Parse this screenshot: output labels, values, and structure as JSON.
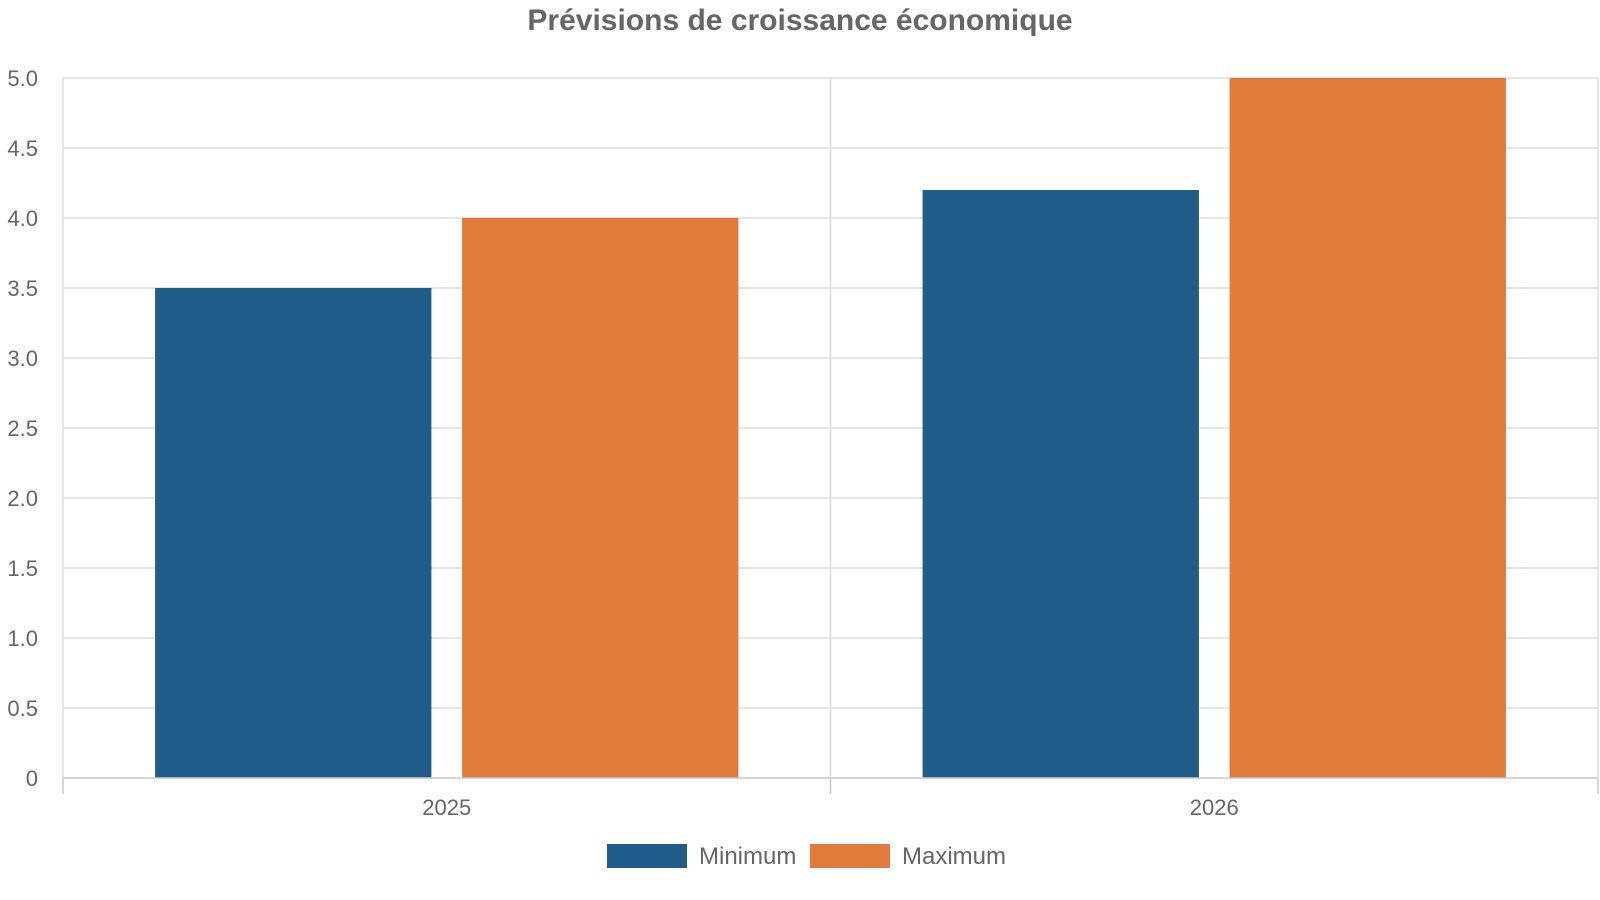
{
  "chart_data": {
    "type": "bar",
    "title": "Prévisions de croissance économique",
    "xlabel": "",
    "ylabel": "",
    "categories": [
      "2025",
      "2026"
    ],
    "series": [
      {
        "name": "Minimum",
        "values": [
          3.5,
          4.2
        ],
        "color": "#1f5c87"
      },
      {
        "name": "Maximum",
        "values": [
          4.0,
          5.0
        ],
        "color": "#e07b3b"
      }
    ],
    "ylim": [
      0,
      5
    ],
    "yticks": [
      "0",
      "0.5",
      "1.0",
      "1.5",
      "2.0",
      "2.5",
      "3.0",
      "3.5",
      "4.0",
      "4.5",
      "5.0"
    ],
    "ytick_values": [
      0,
      0.5,
      1.0,
      1.5,
      2.0,
      2.5,
      3.0,
      3.5,
      4.0,
      4.5,
      5.0
    ],
    "grid": true,
    "legend_position": "bottom-center"
  }
}
